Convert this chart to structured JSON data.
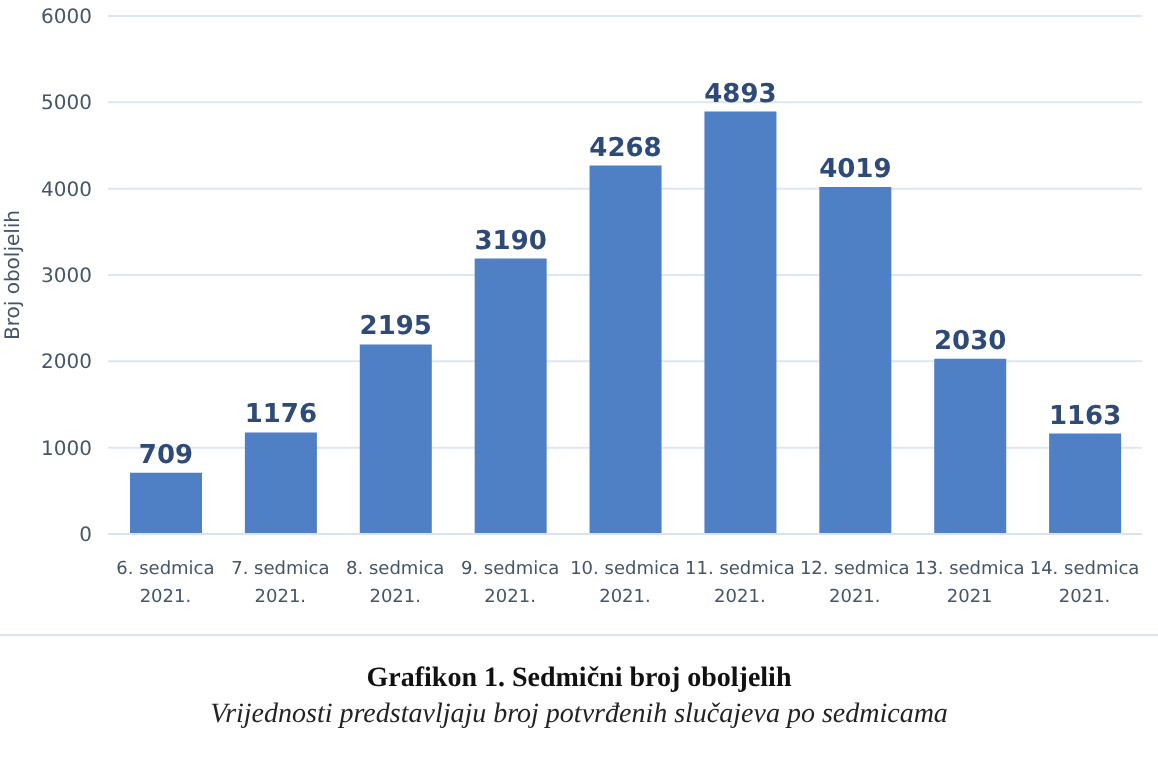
{
  "chart_data": {
    "type": "bar",
    "title": "Grafikon 1. Sedmični broj oboljelih",
    "subtitle": "Vrijednosti predstavljaju broj potvrđenih slučajeva po sedmicama",
    "ylabel": "Broj oboljelih",
    "categories": [
      "6. sedmica 2021.",
      "7. sedmica 2021.",
      "8. sedmica 2021.",
      "9. sedmica 2021.",
      "10. sedmica 2021.",
      "11. sedmica 2021.",
      "12. sedmica 2021.",
      "13. sedmica 2021",
      "14. sedmica 2021."
    ],
    "values": [
      709,
      1176,
      2195,
      3190,
      4268,
      4893,
      4019,
      2030,
      1163
    ],
    "color": "#4f7fc4",
    "ylim": [
      0,
      6000
    ],
    "yticks": [
      0,
      1000,
      2000,
      3000,
      4000,
      5000,
      6000
    ],
    "grid": "y",
    "data_labels": true
  }
}
